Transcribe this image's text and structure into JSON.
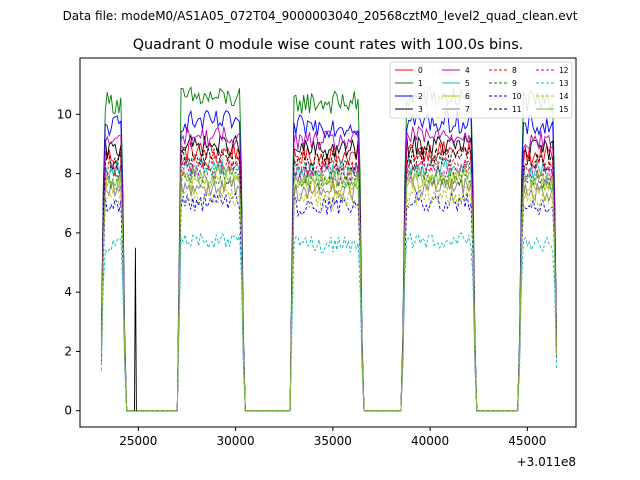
{
  "suptitle": "Data file: modeM0/AS1A05_072T04_9000003040_20568cztM0_level2_quad_clean.evt",
  "chart_data": {
    "type": "line",
    "title": "Quadrant 0 module wise count rates with 100.0s bins.",
    "xlabel": "",
    "ylabel": "",
    "x_offset_label": "+3.011e8",
    "xlim": [
      22000,
      47500
    ],
    "ylim": [
      -0.55,
      11.9
    ],
    "xticks": [
      25000,
      30000,
      35000,
      40000,
      45000
    ],
    "xtick_labels": [
      "25000",
      "30000",
      "35000",
      "40000",
      "45000"
    ],
    "yticks": [
      0,
      2,
      4,
      6,
      8,
      10
    ],
    "ytick_labels": [
      "0",
      "2",
      "4",
      "6",
      "8",
      "10"
    ],
    "grid": false,
    "legend_position": "top-right",
    "legend_columns": 4,
    "on_segments": [
      [
        23100,
        24300
      ],
      [
        27050,
        30400
      ],
      [
        32850,
        36500
      ],
      [
        38600,
        42300
      ],
      [
        44600,
        46500
      ]
    ],
    "series": [
      {
        "name": "0",
        "color": "#ff0000",
        "dash": "solid",
        "level": 8.6,
        "noise": 0.35
      },
      {
        "name": "1",
        "color": "#008000",
        "dash": "solid",
        "level": 10.4,
        "noise": 0.4
      },
      {
        "name": "2",
        "color": "#0000ff",
        "dash": "solid",
        "level": 9.6,
        "noise": 0.38
      },
      {
        "name": "3",
        "color": "#000000",
        "dash": "solid",
        "level": 8.8,
        "noise": 0.35
      },
      {
        "name": "4",
        "color": "#bf00bf",
        "dash": "solid",
        "level": 9.1,
        "noise": 0.35
      },
      {
        "name": "5",
        "color": "#00bfbf",
        "dash": "solid",
        "level": 8.1,
        "noise": 0.33
      },
      {
        "name": "6",
        "color": "#bfbf00",
        "dash": "solid",
        "level": 7.6,
        "noise": 0.33
      },
      {
        "name": "7",
        "color": "#808080",
        "dash": "solid",
        "level": 7.4,
        "noise": 0.33
      },
      {
        "name": "8",
        "color": "#ff0000",
        "dash": "dashed",
        "level": 8.2,
        "noise": 0.33
      },
      {
        "name": "9",
        "color": "#008000",
        "dash": "dashed",
        "level": 7.8,
        "noise": 0.33
      },
      {
        "name": "10",
        "color": "#0000ff",
        "dash": "dashed",
        "level": 6.9,
        "noise": 0.33
      },
      {
        "name": "11",
        "color": "#000000",
        "dash": "dashed",
        "level": 8.4,
        "noise": 0.33
      },
      {
        "name": "12",
        "color": "#bf00bf",
        "dash": "dashed",
        "level": 8.0,
        "noise": 0.33
      },
      {
        "name": "13",
        "color": "#00bfbf",
        "dash": "dashed",
        "level": 5.6,
        "noise": 0.28
      },
      {
        "name": "14",
        "color": "#bfbf00",
        "dash": "dashed",
        "level": 7.1,
        "noise": 0.33
      },
      {
        "name": "15",
        "color": "#7fbf3f",
        "dash": "solid",
        "level": 7.8,
        "noise": 0.33
      }
    ]
  }
}
